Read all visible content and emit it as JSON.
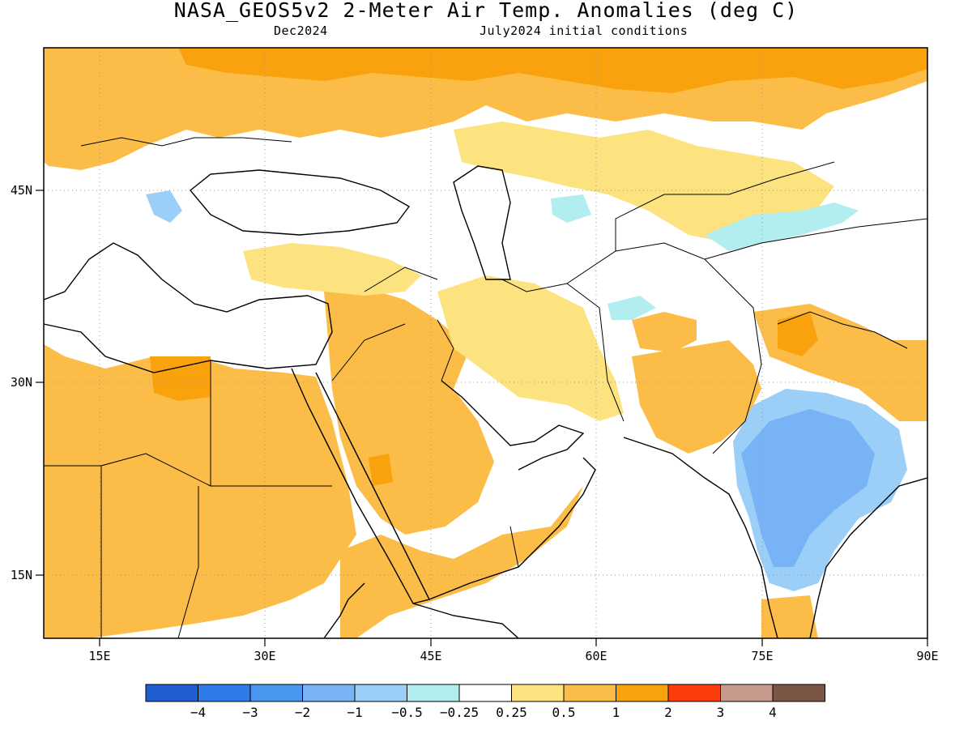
{
  "title": "NASA_GEOS5v2 2-Meter Air Temp. Anomalies (deg C)",
  "subtitle_left": "Dec2024",
  "subtitle_right": "July2024 initial conditions",
  "map": {
    "lon_range": [
      10,
      90
    ],
    "lat_range": [
      9,
      56
    ],
    "lon_ticks": [
      "15E",
      "30E",
      "45E",
      "60E",
      "75E",
      "90E"
    ],
    "lat_ticks": [
      "45N",
      "30N",
      "15N"
    ],
    "gridlines": "dotted"
  },
  "colorbar": {
    "colors": [
      "#1f5fcf",
      "#2f7be8",
      "#4a97f0",
      "#78b4f5",
      "#9ccff8",
      "#b2eef0",
      "#ffffff",
      "#fde380",
      "#fbbd48",
      "#f9a20e",
      "#fb3d0c",
      "#c79b8c",
      "#7b5546"
    ],
    "labels": [
      "−4",
      "−3",
      "−2",
      "−1",
      "−0.5",
      "−0.25",
      "0.25",
      "0.5",
      "1",
      "2",
      "3",
      "4"
    ]
  }
}
